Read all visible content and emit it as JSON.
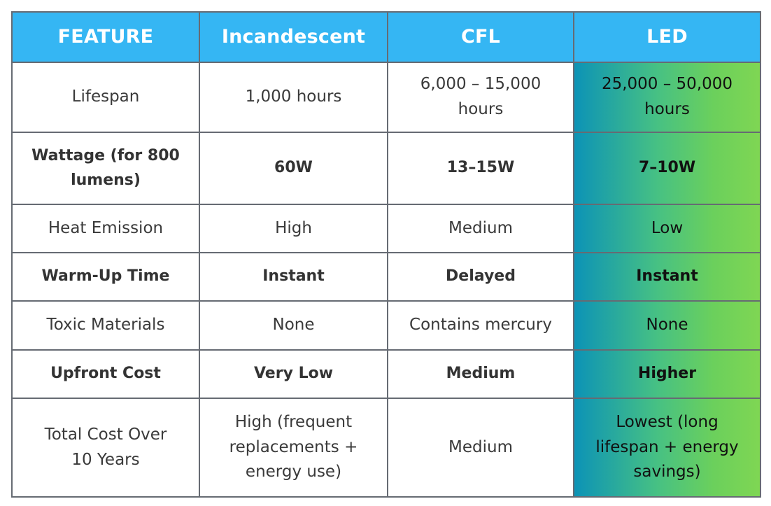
{
  "table": {
    "headers": [
      "FEATURE",
      "Incandescent",
      "CFL",
      "LED"
    ],
    "rows": [
      {
        "feature": "Lifespan",
        "incandescent": "1,000 hours",
        "cfl": "6,000 – 15,000 hours",
        "led": "25,000 – 50,000 hours",
        "bold": false
      },
      {
        "feature": "Wattage (for 800 lumens)",
        "incandescent": "60W",
        "cfl": "13–15W",
        "led": "7–10W",
        "bold": true
      },
      {
        "feature": "Heat Emission",
        "incandescent": "High",
        "cfl": "Medium",
        "led": "Low",
        "bold": false
      },
      {
        "feature": "Warm-Up Time",
        "incandescent": "Instant",
        "cfl": "Delayed",
        "led": "Instant",
        "bold": true
      },
      {
        "feature": "Toxic Materials",
        "incandescent": "None",
        "cfl": "Contains mercury",
        "led": "None",
        "bold": false
      },
      {
        "feature": "Upfront Cost",
        "incandescent": "Very Low",
        "cfl": "Medium",
        "led": "Higher",
        "bold": true
      },
      {
        "feature": "Total Cost Over 10 Years",
        "incandescent": "High (frequent replacements + energy use)",
        "cfl": "Medium",
        "led": "Lowest (long lifespan + energy savings)",
        "bold": false
      }
    ]
  },
  "colors": {
    "header_bg": "#35b6f3",
    "header_text": "#ffffff",
    "border": "#666b73",
    "led_gradient_start": "#0c93b6",
    "led_gradient_end": "#7fd653"
  }
}
